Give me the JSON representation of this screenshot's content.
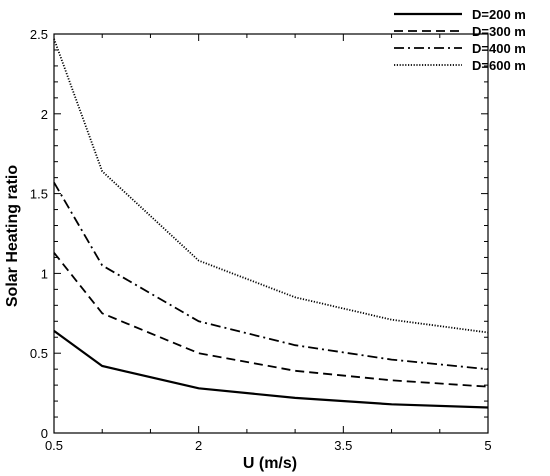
{
  "chart_data": {
    "type": "line",
    "xlabel": "U (m/s)",
    "ylabel": "Solar Heating ratio",
    "xlim": [
      0.5,
      5
    ],
    "ylim": [
      0,
      2.5
    ],
    "xticks": [
      0.5,
      2,
      3.5,
      5
    ],
    "xtick_labels": [
      "0.5",
      "2",
      "3.5",
      "5"
    ],
    "yticks": [
      0,
      0.5,
      1,
      1.5,
      2,
      2.5
    ],
    "ytick_labels": [
      "0",
      "0.5",
      "1",
      "1.5",
      "2",
      "2.5"
    ],
    "x": [
      0.5,
      1,
      2,
      3,
      4,
      5
    ],
    "legend_position": "top-right (outside plot)",
    "grid": false,
    "series": [
      {
        "name": "D=200 m",
        "style": "solid",
        "color": "#000000",
        "values": [
          0.64,
          0.42,
          0.28,
          0.22,
          0.18,
          0.16
        ]
      },
      {
        "name": "D=300 m",
        "style": "dashed",
        "color": "#000000",
        "values": [
          1.13,
          0.75,
          0.5,
          0.39,
          0.33,
          0.29
        ]
      },
      {
        "name": "D=400 m",
        "style": "dashdot",
        "color": "#000000",
        "values": [
          1.57,
          1.05,
          0.7,
          0.55,
          0.46,
          0.4
        ]
      },
      {
        "name": "D=600 m",
        "style": "dotted",
        "color": "#000000",
        "values": [
          2.47,
          1.64,
          1.08,
          0.85,
          0.71,
          0.63
        ]
      }
    ]
  }
}
